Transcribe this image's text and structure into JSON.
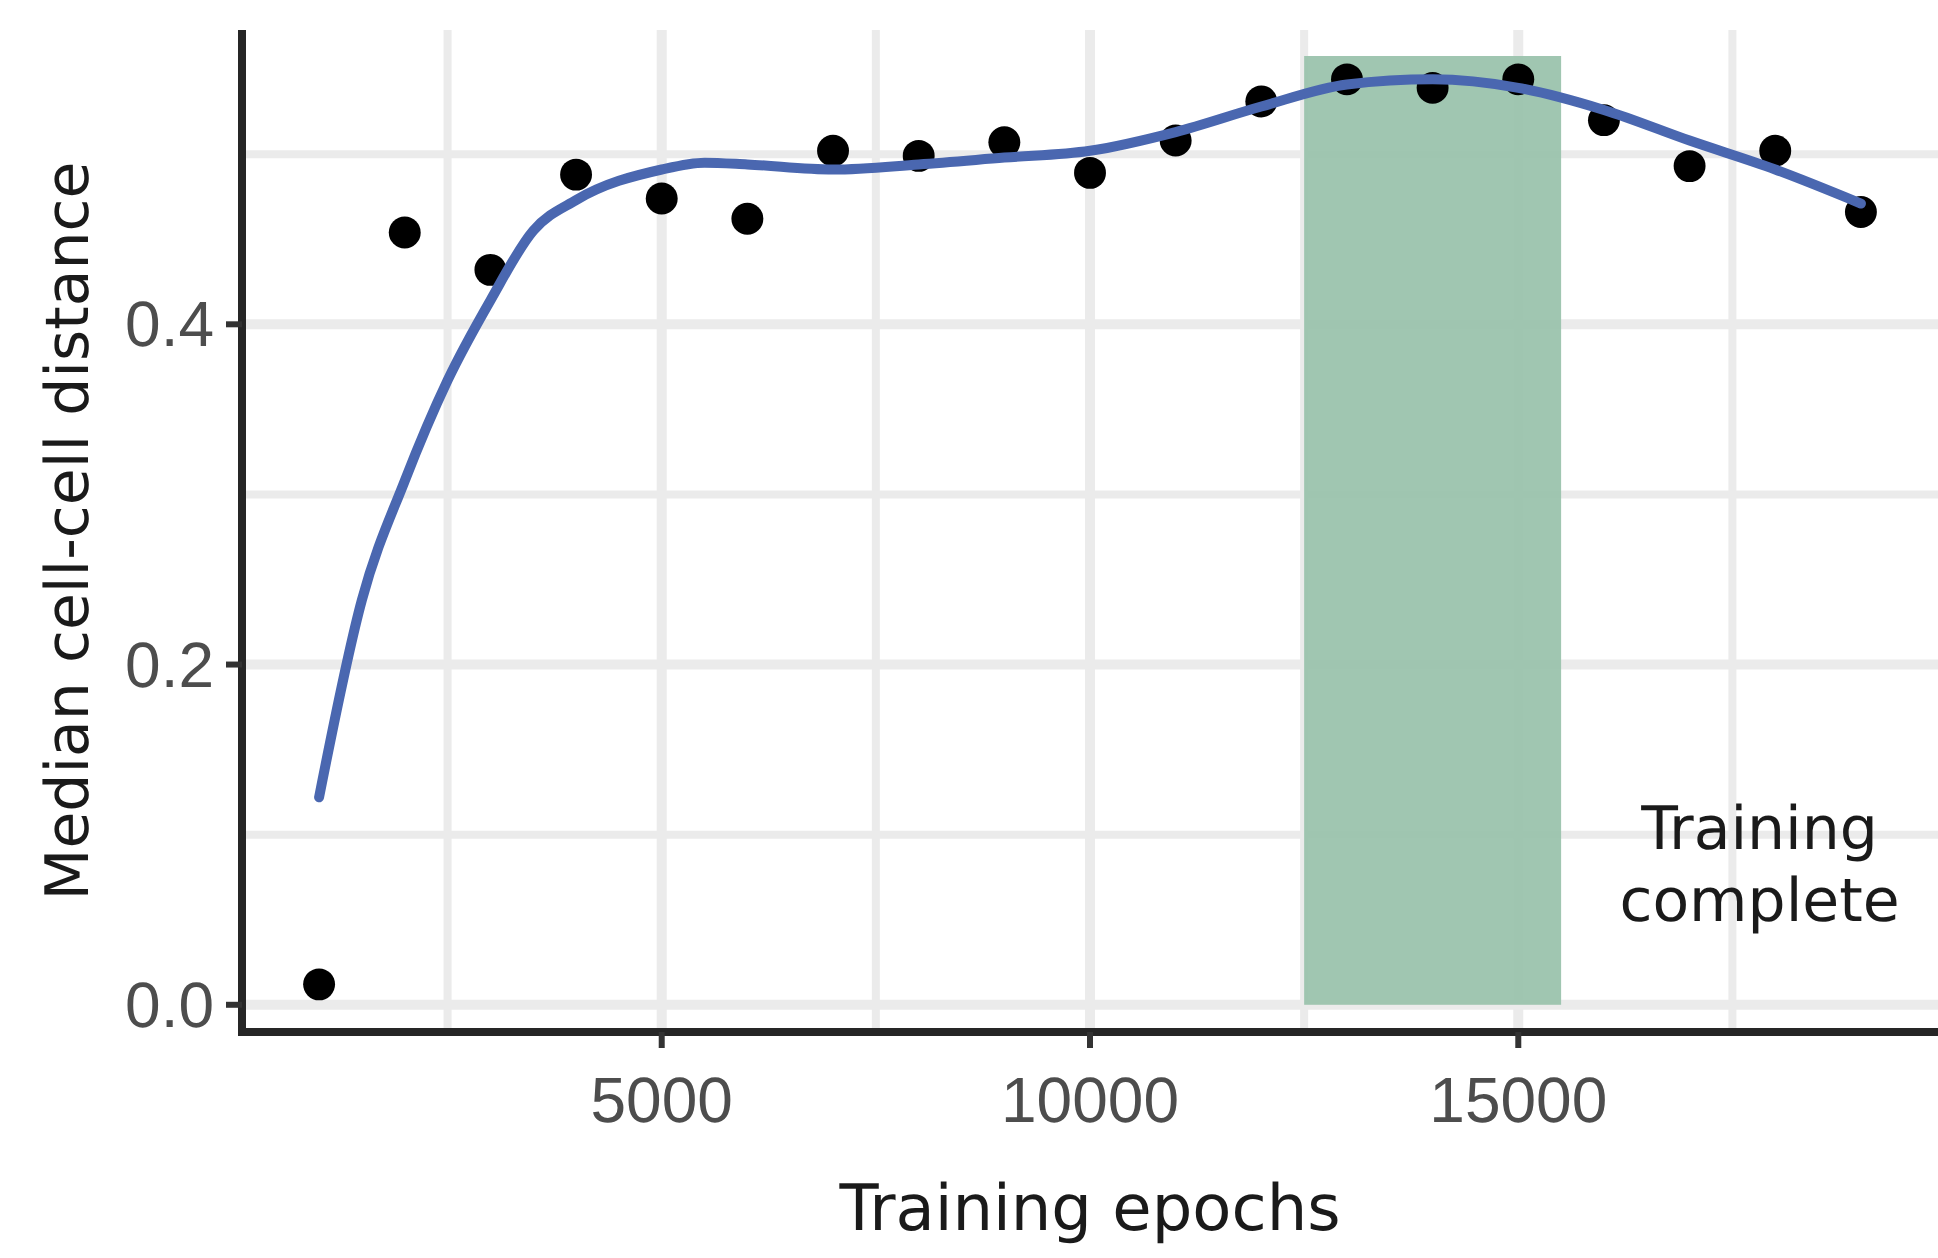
{
  "chart_data": {
    "type": "scatter",
    "xlabel": "Training epochs",
    "ylabel": "Median cell-cell distance",
    "xlim": [
      100,
      19900
    ],
    "ylim": [
      -0.016,
      0.573
    ],
    "xticks": [
      {
        "value": 2500,
        "label": null
      },
      5000,
      {
        "value": 7500,
        "label": null
      },
      10000,
      {
        "value": 12500,
        "label": null
      },
      15000,
      {
        "value": 17500,
        "label": null
      }
    ],
    "yticks": [
      "0.0",
      {
        "value": 0.1,
        "label": null
      },
      {
        "value": 0.2,
        "label": "0.2"
      },
      {
        "value": 0.3,
        "label": null
      },
      {
        "value": 0.4,
        "label": "0.4"
      },
      {
        "value": 0.5,
        "label": null
      }
    ],
    "grid": true,
    "series": [
      {
        "color": "#000000",
        "marker": "circle",
        "x": [
          1000,
          2000,
          3000,
          4000,
          5000,
          6000,
          7000,
          8000,
          9000,
          10000,
          11000,
          12000,
          13000,
          14000,
          15000,
          16000,
          17000,
          18000,
          19000
        ],
        "values": [
          0.012,
          0.454,
          0.432,
          0.488,
          0.474,
          0.462,
          0.502,
          0.499,
          0.507,
          0.489,
          0.508,
          0.531,
          0.544,
          0.539,
          0.544,
          0.52,
          0.493,
          0.502,
          0.466
        ]
      },
      {
        "type": "line",
        "color": "#4a67b0",
        "marker": "none",
        "x": [
          1000,
          1500,
          2000,
          2500,
          3000,
          3500,
          4000,
          5000,
          5500,
          6000,
          7000,
          8000,
          9000,
          10000,
          11000,
          12000,
          13000,
          14000,
          15000,
          16000,
          17000,
          18000,
          19000
        ],
        "values": [
          0.122,
          0.238,
          0.308,
          0.367,
          0.414,
          0.455,
          0.473,
          0.491,
          0.495,
          0.494,
          0.491,
          0.494,
          0.498,
          0.502,
          0.513,
          0.528,
          0.541,
          0.544,
          0.539,
          0.526,
          0.508,
          0.491,
          0.471
        ]
      }
    ],
    "bands": [
      {
        "axis": "x",
        "from": 12500,
        "to": 15500,
        "label": "Training complete",
        "color": "#9bc3ad"
      }
    ]
  }
}
